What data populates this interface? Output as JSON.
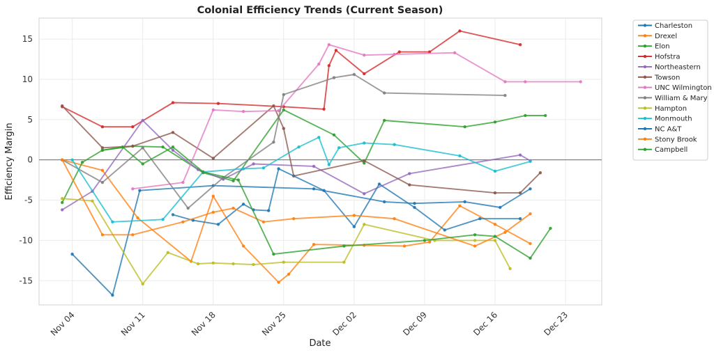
{
  "chart_data": {
    "type": "line",
    "title": "Colonial Efficiency Trends (Current Season)",
    "xlabel": "Date",
    "ylabel": "Efficiency Margin",
    "x_ticks": [
      {
        "label": "Nov 04",
        "day": 4
      },
      {
        "label": "Nov 11",
        "day": 11
      },
      {
        "label": "Nov 18",
        "day": 18
      },
      {
        "label": "Nov 25",
        "day": 25
      },
      {
        "label": "Dec 02",
        "day": 32
      },
      {
        "label": "Dec 09",
        "day": 39
      },
      {
        "label": "Dec 16",
        "day": 46
      },
      {
        "label": "Dec 23",
        "day": 53
      }
    ],
    "y_ticks": [
      -15,
      -10,
      -5,
      0,
      5,
      10,
      15
    ],
    "xlim": [
      0.7,
      56.6
    ],
    "ylim": [
      -18.0,
      17.6
    ],
    "x_unit": "day of season (Nov 1 = 1)",
    "reference_line_y": 0,
    "series": [
      {
        "name": "Charleston",
        "color": "#1f77b4",
        "points": [
          [
            4,
            -11.7
          ],
          [
            8,
            -16.8
          ],
          [
            10.7,
            -3.8
          ],
          [
            18,
            -3.2
          ],
          [
            28,
            -3.6
          ],
          [
            35,
            -5.2
          ],
          [
            38,
            -5.4
          ],
          [
            43,
            -5.2
          ],
          [
            46.5,
            -5.9
          ],
          [
            49.5,
            -3.6
          ]
        ]
      },
      {
        "name": "Drexel",
        "color": "#ff7f0e",
        "points": [
          [
            3,
            0
          ],
          [
            7,
            -1.3
          ],
          [
            10.5,
            -7.2
          ],
          [
            15.8,
            -12.6
          ],
          [
            18,
            -4.5
          ],
          [
            21,
            -10.7
          ],
          [
            24.5,
            -15.2
          ],
          [
            25.5,
            -14.2
          ],
          [
            28,
            -10.5
          ],
          [
            33,
            -10.6
          ],
          [
            37,
            -10.7
          ],
          [
            39.5,
            -10.2
          ],
          [
            42.5,
            -5.7
          ],
          [
            46,
            -8
          ],
          [
            49.5,
            -10.4
          ]
        ]
      },
      {
        "name": "Elon",
        "color": "#2ca02c",
        "points": [
          [
            3,
            -5.3
          ],
          [
            5,
            -0.3
          ],
          [
            7,
            1.2
          ],
          [
            10,
            1.7
          ],
          [
            13,
            1.6
          ],
          [
            17,
            -1.6
          ],
          [
            20,
            -2.6
          ],
          [
            25,
            6.2
          ],
          [
            30,
            3.1
          ],
          [
            33,
            -0.4
          ],
          [
            35,
            4.9
          ],
          [
            43,
            4.1
          ],
          [
            46,
            4.7
          ],
          [
            49,
            5.5
          ],
          [
            51,
            5.5
          ]
        ]
      },
      {
        "name": "Hofstra",
        "color": "#d62728",
        "points": [
          [
            3,
            6.6
          ],
          [
            7,
            4.1
          ],
          [
            10,
            4.1
          ],
          [
            14,
            7.1
          ],
          [
            18.5,
            7
          ],
          [
            25,
            6.6
          ],
          [
            29,
            6.3
          ],
          [
            29.5,
            11.7
          ],
          [
            30.2,
            13.6
          ],
          [
            33,
            10.7
          ],
          [
            36.5,
            13.4
          ],
          [
            39.5,
            13.4
          ],
          [
            42.5,
            16
          ],
          [
            48.5,
            14.3
          ]
        ]
      },
      {
        "name": "Northeastern",
        "color": "#9467bd",
        "points": [
          [
            3,
            -6.2
          ],
          [
            6,
            -3.9
          ],
          [
            11,
            4.9
          ],
          [
            14,
            1.2
          ],
          [
            16.5,
            -1.2
          ],
          [
            19,
            -2.4
          ],
          [
            22,
            -0.5
          ],
          [
            28,
            -0.8
          ],
          [
            33,
            -4.2
          ],
          [
            37.5,
            -1.7
          ],
          [
            48.5,
            0.6
          ],
          [
            49.5,
            -0.1
          ]
        ]
      },
      {
        "name": "Towson",
        "color": "#8c564b",
        "points": [
          [
            3,
            6.7
          ],
          [
            7,
            1.5
          ],
          [
            10,
            1.7
          ],
          [
            14,
            3.4
          ],
          [
            18,
            0.2
          ],
          [
            24,
            6.7
          ],
          [
            25,
            3.9
          ],
          [
            26,
            -2
          ],
          [
            33,
            -0.1
          ],
          [
            37.5,
            -3.1
          ],
          [
            46,
            -4.1
          ],
          [
            48.5,
            -4.1
          ],
          [
            50.5,
            -1.6
          ]
        ]
      },
      {
        "name": "UNC Wilmington",
        "color": "#e377c2",
        "points": [
          [
            10,
            -3.6
          ],
          [
            15,
            -2.8
          ],
          [
            18,
            6.2
          ],
          [
            21,
            6
          ],
          [
            24.5,
            6.1
          ],
          [
            28.5,
            11.9
          ],
          [
            29.5,
            14.3
          ],
          [
            33,
            13
          ],
          [
            36,
            13.1
          ],
          [
            42,
            13.3
          ],
          [
            47,
            9.7
          ],
          [
            49,
            9.7
          ],
          [
            54.5,
            9.7
          ]
        ]
      },
      {
        "name": "William & Mary",
        "color": "#7f7f7f",
        "points": [
          [
            3,
            0
          ],
          [
            7,
            -2.8
          ],
          [
            11,
            1.5
          ],
          [
            15.5,
            -6
          ],
          [
            19,
            -2.2
          ],
          [
            24,
            2.2
          ],
          [
            25,
            8.1
          ],
          [
            30,
            10.2
          ],
          [
            32,
            10.6
          ],
          [
            35,
            8.3
          ],
          [
            47,
            8
          ]
        ]
      },
      {
        "name": "Hampton",
        "color": "#bcbd22",
        "points": [
          [
            3,
            -4.8
          ],
          [
            6,
            -5.1
          ],
          [
            11,
            -15.4
          ],
          [
            13.5,
            -11.5
          ],
          [
            16.5,
            -12.9
          ],
          [
            18,
            -12.8
          ],
          [
            20,
            -12.9
          ],
          [
            22,
            -13
          ],
          [
            25,
            -12.7
          ],
          [
            31,
            -12.7
          ],
          [
            33,
            -8
          ],
          [
            40,
            -10
          ],
          [
            44,
            -10
          ],
          [
            46,
            -10
          ],
          [
            47.5,
            -13.5
          ]
        ]
      },
      {
        "name": "Monmouth",
        "color": "#17becf",
        "points": [
          [
            4,
            0
          ],
          [
            8,
            -7.7
          ],
          [
            13,
            -7.4
          ],
          [
            17,
            -1.5
          ],
          [
            21,
            -1.1
          ],
          [
            23,
            -1
          ],
          [
            26.5,
            1.6
          ],
          [
            28.5,
            2.8
          ],
          [
            29.5,
            -0.6
          ],
          [
            30.5,
            1.5
          ],
          [
            33,
            2.1
          ],
          [
            36,
            1.9
          ],
          [
            42.5,
            0.5
          ],
          [
            46,
            -1.4
          ],
          [
            49.5,
            -0.2
          ]
        ]
      },
      {
        "name": "NC A&T",
        "color": "#1f77b4",
        "points": [
          [
            14,
            -6.8
          ],
          [
            16,
            -7.5
          ],
          [
            18.5,
            -8
          ],
          [
            21,
            -5.5
          ],
          [
            22,
            -6.2
          ],
          [
            23.5,
            -6.3
          ],
          [
            24.5,
            -1.1
          ],
          [
            29,
            -3.8
          ],
          [
            32,
            -8.3
          ],
          [
            34.5,
            -3
          ],
          [
            38,
            -5.9
          ],
          [
            41,
            -8.7
          ],
          [
            44.5,
            -7.3
          ],
          [
            48.5,
            -7.3
          ]
        ]
      },
      {
        "name": "Stony Brook",
        "color": "#ff7f0e",
        "points": [
          [
            3,
            0
          ],
          [
            7,
            -9.3
          ],
          [
            10,
            -9.3
          ],
          [
            15,
            -7.7
          ],
          [
            18,
            -6.5
          ],
          [
            20,
            -6
          ],
          [
            23,
            -7.7
          ],
          [
            26,
            -7.3
          ],
          [
            32,
            -6.9
          ],
          [
            36,
            -7.3
          ],
          [
            44,
            -10.7
          ],
          [
            47,
            -9
          ],
          [
            49.5,
            -6.7
          ]
        ]
      },
      {
        "name": "Campbell",
        "color": "#2ca02c",
        "points": [
          [
            7,
            1.2
          ],
          [
            9,
            1.6
          ],
          [
            11,
            -0.5
          ],
          [
            14,
            1.6
          ],
          [
            17,
            -1.5
          ],
          [
            20.5,
            -2.5
          ],
          [
            24,
            -11.7
          ],
          [
            31,
            -10.7
          ],
          [
            39,
            -10
          ],
          [
            44,
            -9.3
          ],
          [
            46,
            -9.5
          ],
          [
            49.5,
            -12.2
          ],
          [
            51.5,
            -8.5
          ]
        ]
      }
    ]
  }
}
